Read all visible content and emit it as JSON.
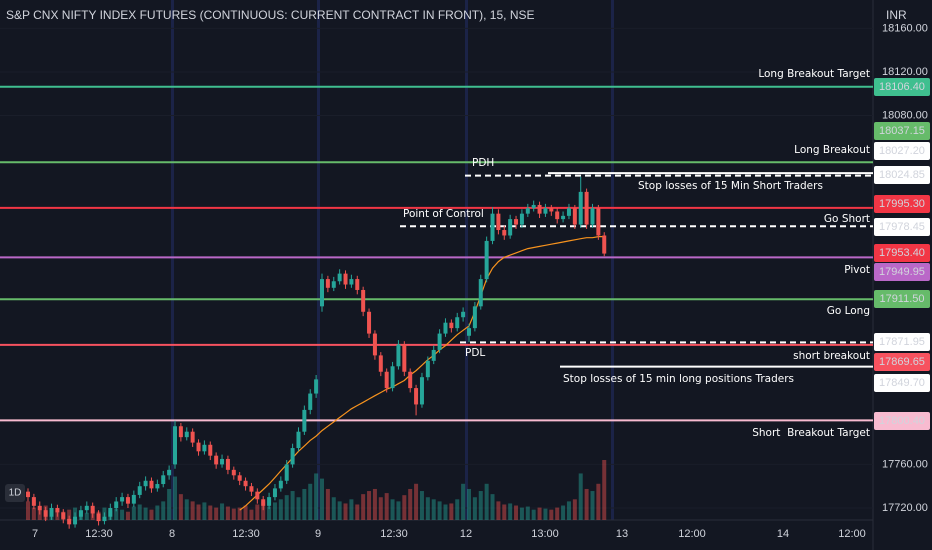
{
  "chart_data": {
    "type": "candlestick",
    "title": "S&P CNX NIFTY INDEX FUTURES (CONTINUOUS: CURRENT CONTRACT IN FRONT), 15, NSE",
    "currency": "INR",
    "interval_badge": "1D",
    "up_color": "#26a69a",
    "down_color": "#ef5350",
    "vwap_color": "#f7931e",
    "ylim": [
      17709,
      18186
    ],
    "yticks": [
      {
        "value": 18160,
        "label": "18160.00"
      },
      {
        "value": 18120,
        "label": "18120.00"
      },
      {
        "value": 18080,
        "label": "18080.00"
      },
      {
        "value": 17760,
        "label": "17760.00"
      },
      {
        "value": 17720,
        "label": "17720.00"
      }
    ],
    "x_labels": [
      "7",
      "12:30",
      "8",
      "12:30",
      "9",
      "12:30",
      "12",
      "13:00",
      "13",
      "12:00",
      "14",
      "12:00"
    ],
    "candles": [
      [
        17735,
        17738,
        17726,
        17730
      ],
      [
        17730,
        17733,
        17719,
        17722
      ],
      [
        17722,
        17726,
        17714,
        17718
      ],
      [
        17718,
        17721,
        17708,
        17712
      ],
      [
        17712,
        17724,
        17709,
        17720
      ],
      [
        17720,
        17723,
        17712,
        17716
      ],
      [
        17716,
        17719,
        17706,
        17710
      ],
      [
        17710,
        17713,
        17701,
        17705
      ],
      [
        17705,
        17716,
        17702,
        17712
      ],
      [
        17712,
        17722,
        17709,
        17718
      ],
      [
        17718,
        17726,
        17715,
        17722
      ],
      [
        17722,
        17725,
        17711,
        17715
      ],
      [
        17715,
        17718,
        17704,
        17708
      ],
      [
        17708,
        17716,
        17705,
        17712
      ],
      [
        17712,
        17724,
        17709,
        17720
      ],
      [
        17720,
        17730,
        17717,
        17726
      ],
      [
        17726,
        17734,
        17722,
        17730
      ],
      [
        17730,
        17733,
        17720,
        17724
      ],
      [
        17724,
        17736,
        17721,
        17732
      ],
      [
        17732,
        17744,
        17729,
        17740
      ],
      [
        17740,
        17749,
        17736,
        17745
      ],
      [
        17745,
        17748,
        17734,
        17738
      ],
      [
        17738,
        17746,
        17735,
        17742
      ],
      [
        17742,
        17754,
        17739,
        17750
      ],
      [
        17750,
        17759,
        17746,
        17755
      ],
      [
        17760,
        17800,
        17756,
        17795
      ],
      [
        17795,
        17798,
        17781,
        17785
      ],
      [
        17785,
        17794,
        17782,
        17790
      ],
      [
        17790,
        17793,
        17776,
        17780
      ],
      [
        17780,
        17783,
        17768,
        17772
      ],
      [
        17772,
        17782,
        17769,
        17778
      ],
      [
        17778,
        17781,
        17764,
        17768
      ],
      [
        17768,
        17771,
        17756,
        17760
      ],
      [
        17760,
        17769,
        17757,
        17765
      ],
      [
        17765,
        17768,
        17751,
        17755
      ],
      [
        17755,
        17758,
        17746,
        17750
      ],
      [
        17750,
        17753,
        17741,
        17745
      ],
      [
        17745,
        17748,
        17736,
        17740
      ],
      [
        17740,
        17743,
        17731,
        17735
      ],
      [
        17735,
        17738,
        17724,
        17728
      ],
      [
        17728,
        17731,
        17718,
        17722
      ],
      [
        17722,
        17734,
        17719,
        17730
      ],
      [
        17730,
        17742,
        17727,
        17738
      ],
      [
        17738,
        17749,
        17735,
        17745
      ],
      [
        17745,
        17764,
        17742,
        17760
      ],
      [
        17760,
        17779,
        17757,
        17775
      ],
      [
        17775,
        17794,
        17772,
        17790
      ],
      [
        17790,
        17814,
        17787,
        17810
      ],
      [
        17810,
        17829,
        17806,
        17825
      ],
      [
        17825,
        17842,
        17821,
        17838
      ],
      [
        17905,
        17935,
        17900,
        17930
      ],
      [
        17930,
        17933,
        17918,
        17922
      ],
      [
        17922,
        17932,
        17919,
        17928
      ],
      [
        17928,
        17939,
        17925,
        17935
      ],
      [
        17935,
        17938,
        17921,
        17925
      ],
      [
        17925,
        17934,
        17922,
        17930
      ],
      [
        17930,
        17933,
        17916,
        17920
      ],
      [
        17920,
        17923,
        17896,
        17900
      ],
      [
        17900,
        17903,
        17876,
        17880
      ],
      [
        17880,
        17883,
        17856,
        17860
      ],
      [
        17860,
        17863,
        17841,
        17845
      ],
      [
        17845,
        17848,
        17826,
        17830
      ],
      [
        17830,
        17854,
        17827,
        17850
      ],
      [
        17850,
        17874,
        17847,
        17870
      ],
      [
        17870,
        17873,
        17841,
        17845
      ],
      [
        17845,
        17848,
        17826,
        17830
      ],
      [
        17830,
        17833,
        17805,
        17815
      ],
      [
        17815,
        17844,
        17812,
        17840
      ],
      [
        17840,
        17859,
        17837,
        17855
      ],
      [
        17855,
        17869,
        17852,
        17865
      ],
      [
        17865,
        17884,
        17862,
        17880
      ],
      [
        17880,
        17894,
        17877,
        17890
      ],
      [
        17890,
        17893,
        17881,
        17885
      ],
      [
        17885,
        17899,
        17882,
        17895
      ],
      [
        17895,
        17904,
        17891,
        17900
      ],
      [
        17878,
        17889,
        17872,
        17885
      ],
      [
        17885,
        17909,
        17882,
        17905
      ],
      [
        17905,
        17934,
        17902,
        17930
      ],
      [
        17930,
        17969,
        17927,
        17965
      ],
      [
        17965,
        17996,
        17962,
        17990
      ],
      [
        17990,
        17994,
        17971,
        17975
      ],
      [
        17975,
        17979,
        17966,
        17970
      ],
      [
        17970,
        17989,
        17967,
        17985
      ],
      [
        17985,
        17988,
        17976,
        17980
      ],
      [
        17980,
        17994,
        17977,
        17990
      ],
      [
        17990,
        17999,
        17987,
        17995
      ],
      [
        17995,
        18002,
        17992,
        17998
      ],
      [
        17998,
        18001,
        17986,
        17990
      ],
      [
        17990,
        17999,
        17987,
        17995
      ],
      [
        17995,
        17998,
        17988,
        17992
      ],
      [
        17992,
        17995,
        17981,
        17985
      ],
      [
        17985,
        17992,
        17982,
        17988
      ],
      [
        17988,
        17999,
        17985,
        17995
      ],
      [
        17995,
        17998,
        17976,
        17980
      ],
      [
        17980,
        18024,
        17977,
        18010
      ],
      [
        18010,
        18013,
        17976,
        17980
      ],
      [
        17980,
        17999,
        17977,
        17995
      ],
      [
        17995,
        17998,
        17966,
        17970
      ],
      [
        17970,
        17973,
        17951,
        17953.4
      ]
    ],
    "volume": [
      18,
      12,
      10,
      14,
      9,
      11,
      8,
      10,
      12,
      9,
      7,
      10,
      8,
      12,
      9,
      11,
      10,
      8,
      13,
      15,
      12,
      10,
      14,
      18,
      30,
      42,
      25,
      20,
      18,
      15,
      17,
      14,
      12,
      16,
      13,
      11,
      12,
      14,
      10,
      15,
      18,
      13,
      17,
      20,
      24,
      28,
      22,
      30,
      35,
      45,
      40,
      30,
      22,
      18,
      16,
      20,
      15,
      25,
      28,
      30,
      22,
      26,
      20,
      18,
      24,
      30,
      35,
      28,
      22,
      20,
      18,
      15,
      16,
      20,
      35,
      30,
      22,
      28,
      35,
      25,
      18,
      15,
      16,
      14,
      12,
      13,
      10,
      12,
      11,
      10,
      12,
      14,
      18,
      20,
      45,
      30,
      28,
      35,
      58
    ],
    "vwap": [
      null,
      null,
      null,
      null,
      null,
      null,
      null,
      null,
      null,
      null,
      null,
      null,
      null,
      null,
      null,
      null,
      null,
      null,
      null,
      null,
      null,
      null,
      null,
      null,
      null,
      null,
      null,
      null,
      null,
      null,
      null,
      null,
      null,
      null,
      null,
      null,
      17718,
      17722,
      17727,
      17732,
      17737,
      17742,
      17748,
      17754,
      17760,
      17766,
      17772,
      17777,
      17782,
      17786,
      17791,
      17795,
      17799,
      17803,
      17807,
      17811,
      17814,
      17817,
      17820,
      17823,
      17826,
      17829,
      17831,
      17834,
      17837,
      17842,
      17846,
      17851,
      17856,
      17860,
      17865,
      17869,
      17874,
      17879,
      17883,
      17887,
      17900,
      17915,
      17930,
      17940,
      17946,
      17950,
      17952,
      17954,
      17956,
      17958,
      17959,
      17960,
      17961,
      17962,
      17963,
      17964,
      17965,
      17966,
      17967,
      17968,
      17968,
      17969,
      17969
    ],
    "last_price": {
      "value": 17953.4,
      "label": "17953.40",
      "color": "#f23645"
    },
    "levels": [
      {
        "name": "Long Breakout Target",
        "value": 18106.4,
        "label": "18106.40",
        "color": "#3fbf8f",
        "style": "solid"
      },
      {
        "name": "Long Breakout",
        "value": 18037.15,
        "label": "18037.15",
        "color": "#66bb6a",
        "style": "solid"
      },
      {
        "name": "Stop losses of 15 Min Short Traders",
        "value": 18027.2,
        "label": "18027.20",
        "color": "#ffffff",
        "style": "solid"
      },
      {
        "name": "PDH",
        "value": 18024.85,
        "label": "18024.85",
        "color": "#ffffff",
        "style": "dashed"
      },
      {
        "name": "Go Short",
        "value": 17995.3,
        "label": "17995.30",
        "color": "#f23645",
        "style": "solid"
      },
      {
        "name": "Point of Control",
        "value": 17978.45,
        "label": "17978.45",
        "color": "#ffffff",
        "style": "dashed"
      },
      {
        "name": "Pivot",
        "value": 17949.95,
        "label": "17949.95",
        "color": "#ba68c8",
        "style": "solid"
      },
      {
        "name": "Go Long",
        "value": 17911.5,
        "label": "17911.50",
        "color": "#66bb6a",
        "style": "solid"
      },
      {
        "name": "PDL",
        "value": 17871.95,
        "label": "17871.95",
        "color": "#ffffff",
        "style": "dashed"
      },
      {
        "name": "short breakout",
        "value": 17869.65,
        "label": "17869.65",
        "color": "#f7525f",
        "style": "solid"
      },
      {
        "name": "Stop losses of 15 min long positions Traders",
        "value": 17849.7,
        "label": "17849.70",
        "color": "#ffffff",
        "style": "solid"
      },
      {
        "name": "Short  Breakout Target",
        "value": 17800.4,
        "label": "17800.40",
        "color": "#f8bbd0",
        "style": "solid"
      }
    ]
  }
}
